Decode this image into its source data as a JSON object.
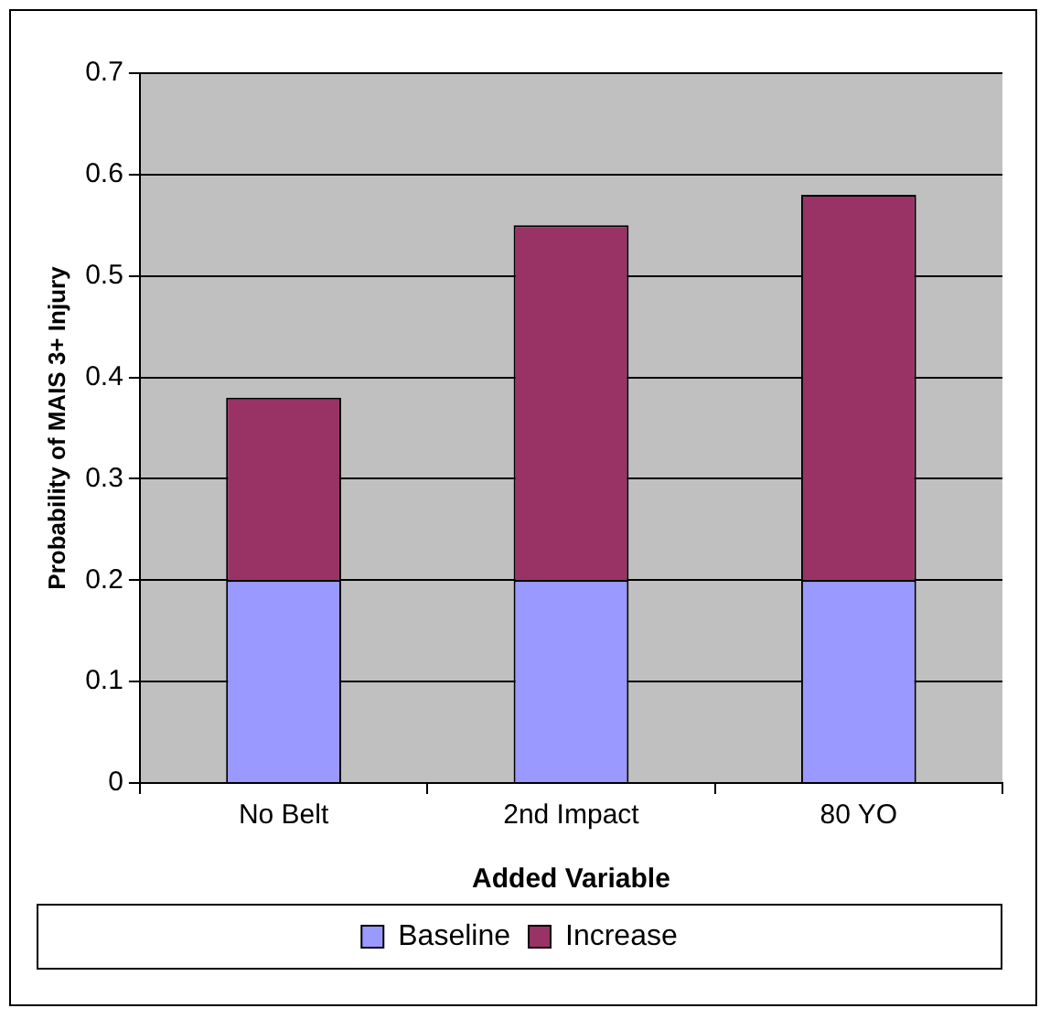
{
  "chart_data": {
    "type": "bar",
    "xlabel": "Added Variable",
    "ylabel": "Probability of MAIS 3+ Injury",
    "categories": [
      "No Belt",
      "2nd Impact",
      "80 YO"
    ],
    "series": [
      {
        "name": "Baseline",
        "color": "#9999ff",
        "values": [
          0.2,
          0.2,
          0.2
        ]
      },
      {
        "name": "Increase",
        "color": "#993366",
        "values": [
          0.18,
          0.35,
          0.38
        ]
      }
    ],
    "stacked": true,
    "ylim": [
      0,
      0.7
    ],
    "yticks": [
      0,
      0.1,
      0.2,
      0.3,
      0.4,
      0.5,
      0.6,
      0.7
    ],
    "grid": "y",
    "legend": "bottom"
  }
}
